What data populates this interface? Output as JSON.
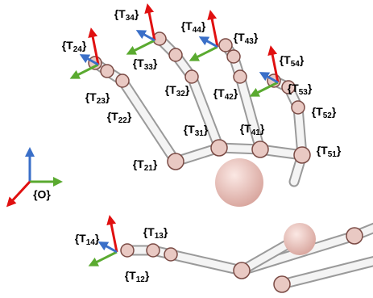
{
  "labels": [
    {
      "prefix": "{T",
      "sub": "34",
      "suffix": "}"
    },
    {
      "prefix": "{T",
      "sub": "44",
      "suffix": "}"
    },
    {
      "prefix": "{T",
      "sub": "43",
      "suffix": "}"
    },
    {
      "prefix": "{T",
      "sub": "24",
      "suffix": "}"
    },
    {
      "prefix": "{T",
      "sub": "54",
      "suffix": "}"
    },
    {
      "prefix": "{T",
      "sub": "33",
      "suffix": "}"
    },
    {
      "prefix": "{T",
      "sub": "53",
      "suffix": "}"
    },
    {
      "prefix": "{T",
      "sub": "23",
      "suffix": "}"
    },
    {
      "prefix": "{T",
      "sub": "32",
      "suffix": "}"
    },
    {
      "prefix": "{T",
      "sub": "42",
      "suffix": "}"
    },
    {
      "prefix": "{T",
      "sub": "22",
      "suffix": "}"
    },
    {
      "prefix": "{T",
      "sub": "52",
      "suffix": "}"
    },
    {
      "prefix": "{T",
      "sub": "31",
      "suffix": "}"
    },
    {
      "prefix": "{T",
      "sub": "41",
      "suffix": "}"
    },
    {
      "prefix": "{T",
      "sub": "51",
      "suffix": "}"
    },
    {
      "prefix": "{T",
      "sub": "21",
      "suffix": "}"
    },
    {
      "prefix": "{T",
      "sub": "14",
      "suffix": "}"
    },
    {
      "prefix": "{T",
      "sub": "13",
      "suffix": "}"
    },
    {
      "prefix": "{T",
      "sub": "12",
      "suffix": "}"
    }
  ],
  "origin": "{O}"
}
